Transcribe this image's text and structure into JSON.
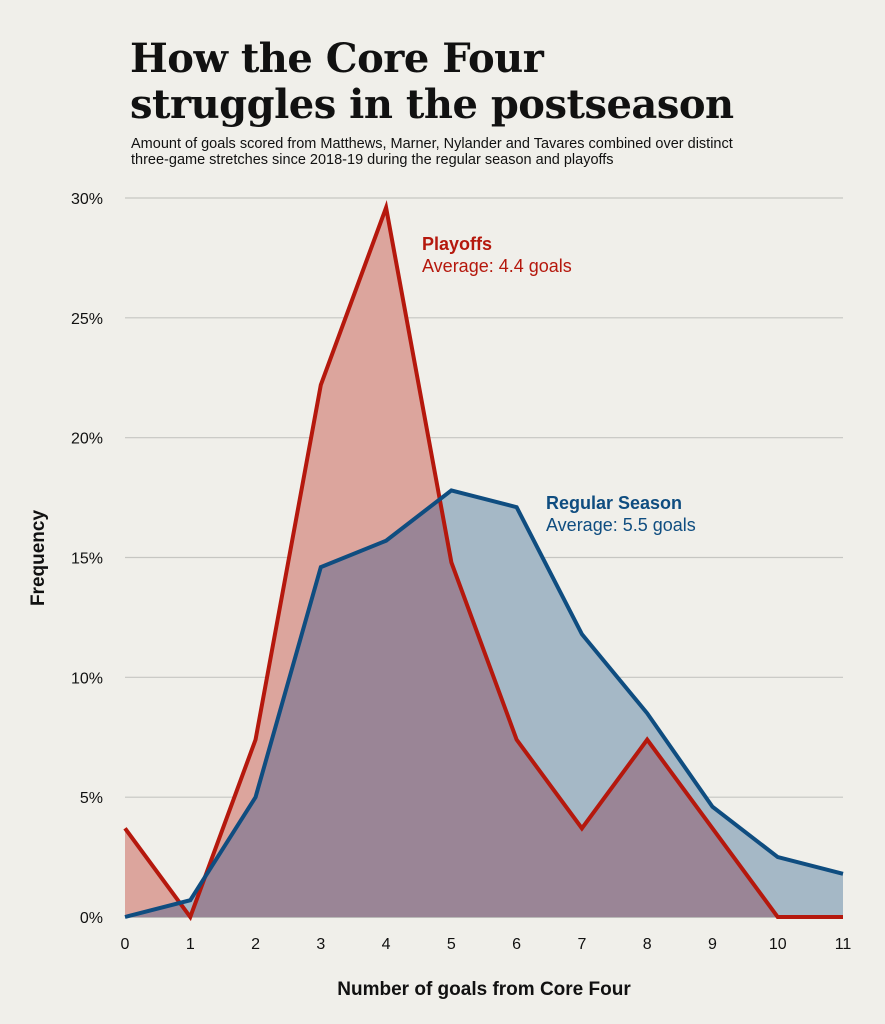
{
  "chart_data": {
    "type": "area",
    "title_lines": [
      "How the Core Four",
      "struggles in the postseason"
    ],
    "subtitle_lines": [
      "Amount of goals scored from Matthews, Marner, Nylander and Tavares combined over distinct",
      "three-game stretches since 2018-19 during the regular season and playoffs"
    ],
    "xlabel": "Number of goals from Core Four",
    "ylabel": "Frequency",
    "x": [
      0,
      1,
      2,
      3,
      4,
      5,
      6,
      7,
      8,
      9,
      10,
      11
    ],
    "xlim": [
      0,
      11
    ],
    "ylim": [
      0,
      30
    ],
    "yticks": [
      0,
      5,
      10,
      15,
      20,
      25,
      30
    ],
    "ytick_labels": [
      "0%",
      "5%",
      "10%",
      "15%",
      "20%",
      "25%",
      "30%"
    ],
    "grid": true,
    "series": [
      {
        "name": "Playoffs",
        "label": "Playoffs",
        "average_label": "Average: 4.4 goals",
        "color": "#b5180d",
        "fill": "#dca59d",
        "values": [
          3.7,
          0,
          7.4,
          22.2,
          29.6,
          14.8,
          7.4,
          3.7,
          7.4,
          3.7,
          0,
          0
        ]
      },
      {
        "name": "Regular Season",
        "label": "Regular Season",
        "average_label": "Average: 5.5 goals",
        "color": "#0f4d80",
        "fill": "#a5b8c6",
        "values": [
          0,
          0.7,
          5.0,
          14.6,
          15.7,
          17.8,
          17.1,
          11.8,
          8.5,
          4.6,
          2.5,
          1.8
        ]
      }
    ],
    "overlap_color": "#9a8596"
  }
}
